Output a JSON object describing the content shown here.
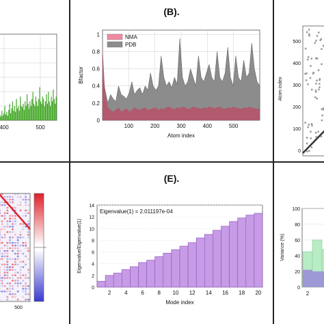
{
  "panels": {
    "b_label": "(B).",
    "e_label": "(E)."
  },
  "colors": {
    "green": "#3aa31c",
    "pdb_gray": "#8c8c8c",
    "nma_red": "#b5546a",
    "nma_legend": "#f08aa0",
    "bar_purple": "#c79be6",
    "bar_purple_edge": "#8a55b8",
    "heat_red": "#e0202a",
    "heat_blue": "#3a3ad0",
    "variance_purple": "#9a90d8",
    "variance_green": "#b8ecc4"
  },
  "chart_data": [
    {
      "id": "panel-a",
      "type": "bar",
      "x_ticks": [
        "400",
        "500"
      ],
      "values_sketch": [
        0.05,
        0.12,
        0.08,
        0.2,
        0.1,
        0.15,
        0.3,
        0.12,
        0.18,
        0.1,
        0.22,
        0.35,
        0.15,
        0.25,
        0.4,
        0.2,
        0.3,
        0.18,
        0.45,
        0.25,
        0.3,
        0.2,
        0.5,
        0.3,
        0.28,
        0.35,
        0.22,
        0.4,
        0.3,
        0.55,
        0.35,
        0.25,
        0.4,
        0.3,
        0.45,
        0.6,
        0.35,
        0.3,
        0.5,
        0.4,
        0.3,
        0.45,
        0.7,
        0.4,
        0.35,
        0.5,
        0.45,
        0.3,
        0.4,
        0.55,
        0.35,
        0.6,
        0.4,
        0.3,
        0.5,
        0.4,
        0.65,
        0.45,
        0.35,
        0.5
      ]
    },
    {
      "id": "panel-b",
      "type": "area",
      "title": "(B).",
      "xlabel": "Atom index",
      "ylabel": "Bfactor",
      "xlim": [
        0,
        600
      ],
      "ylim": [
        0,
        1.05
      ],
      "x_ticks": [
        100,
        200,
        300,
        400,
        500
      ],
      "y_ticks": [
        0,
        0.2,
        0.4,
        0.6,
        0.8,
        1
      ],
      "y_tick_labels": [
        "0",
        "0.2",
        "0.4",
        "0.6",
        "0.8",
        "1"
      ],
      "legend": {
        "position": "top-left",
        "entries": [
          "NMA",
          "PDB"
        ]
      },
      "series": [
        {
          "name": "NMA",
          "values_sketch": [
            0.85,
            0.3,
            0.15,
            0.12,
            0.1,
            0.12,
            0.15,
            0.1,
            0.12,
            0.14,
            0.1,
            0.12,
            0.15,
            0.13,
            0.12,
            0.14,
            0.15,
            0.12,
            0.13,
            0.14,
            0.15,
            0.12,
            0.14,
            0.13,
            0.15,
            0.16,
            0.14,
            0.13,
            0.15,
            0.14,
            0.16,
            0.15,
            0.13,
            0.14,
            0.16,
            0.15,
            0.14,
            0.13,
            0.15,
            0.14,
            0.16,
            0.15,
            0.14,
            0.15,
            0.16,
            0.14,
            0.13,
            0.15,
            0.14,
            0.16,
            0.15,
            0.14,
            0.13,
            0.15,
            0.14,
            0.16,
            0.15,
            0.14,
            0.13,
            0.14
          ]
        },
        {
          "name": "PDB",
          "values_sketch": [
            0.5,
            0.35,
            0.2,
            0.3,
            0.25,
            0.22,
            0.4,
            0.3,
            0.28,
            0.25,
            0.32,
            0.45,
            0.3,
            0.35,
            0.38,
            0.3,
            0.4,
            0.35,
            0.55,
            0.4,
            0.35,
            0.4,
            0.75,
            0.5,
            0.4,
            0.45,
            0.38,
            0.5,
            0.42,
            0.95,
            0.5,
            0.4,
            0.45,
            0.6,
            0.5,
            0.4,
            0.75,
            0.5,
            0.45,
            0.55,
            0.65,
            0.5,
            0.45,
            0.8,
            0.5,
            0.45,
            0.55,
            0.85,
            0.5,
            0.4,
            0.75,
            0.5,
            0.45,
            0.7,
            0.5,
            0.55,
            0.9,
            0.6,
            0.45,
            0.4
          ]
        }
      ]
    },
    {
      "id": "panel-c",
      "type": "scatter",
      "ylabel": "Atom index",
      "y_ticks": [
        "0",
        "100",
        "200",
        "300",
        "400",
        "500"
      ]
    },
    {
      "id": "panel-d",
      "type": "heatmap",
      "x_ticks": [
        "500"
      ]
    },
    {
      "id": "panel-e",
      "type": "bar",
      "title": "(E).",
      "annotation": "Eigenvalue(1) = 2.011197e-04",
      "xlabel": "Mode index",
      "ylabel": "Eigenvalue/Eigenvalue(1)",
      "categories": [
        1,
        2,
        3,
        4,
        5,
        6,
        7,
        8,
        9,
        10,
        11,
        12,
        13,
        14,
        15,
        16,
        17,
        18,
        19,
        20
      ],
      "x_tick_labels": [
        "2",
        "4",
        "6",
        "8",
        "10",
        "12",
        "14",
        "16",
        "18",
        "20"
      ],
      "values": [
        1.0,
        2.0,
        2.4,
        3.0,
        3.5,
        4.2,
        4.6,
        5.2,
        5.8,
        6.4,
        7.0,
        7.6,
        8.4,
        9.0,
        9.7,
        10.4,
        11.2,
        11.8,
        12.3,
        12.6
      ],
      "ylim": [
        0,
        14
      ],
      "y_ticks": [
        0,
        2,
        4,
        6,
        8,
        10,
        12,
        14
      ]
    },
    {
      "id": "panel-f",
      "type": "bar",
      "ylabel": "Variance (%)",
      "ylim": [
        0,
        100
      ],
      "y_ticks": [
        0,
        20,
        40,
        60,
        80,
        100
      ],
      "x_tick_labels": [
        "2"
      ],
      "series": [
        {
          "values": [
            22,
            20,
            20
          ]
        },
        {
          "values": [
            45,
            60,
            48
          ]
        }
      ]
    }
  ]
}
